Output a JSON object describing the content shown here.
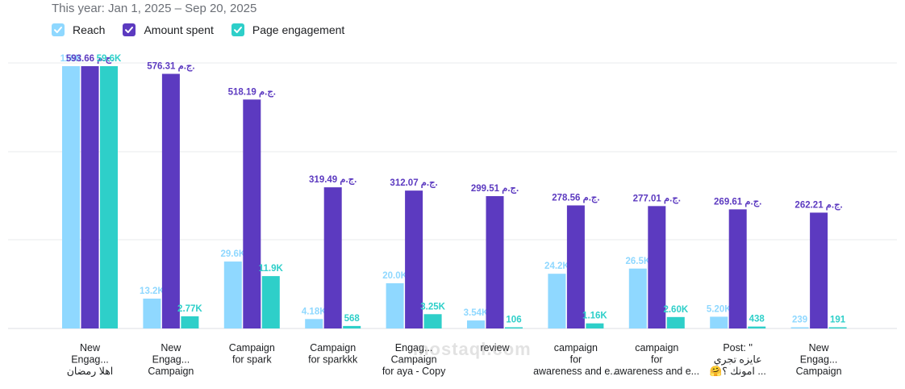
{
  "header": {
    "date_range": "This year: Jan 1, 2025 – Sep 20, 2025"
  },
  "legend": [
    {
      "label": "Reach",
      "color": "#8fd8ff",
      "icon": "check-icon"
    },
    {
      "label": "Amount spent",
      "color": "#5c3ac0",
      "icon": "check-icon"
    },
    {
      "label": "Page engagement",
      "color": "#2ecfc9",
      "icon": "check-icon"
    }
  ],
  "watermark": "mostaql.com",
  "chart_data": {
    "type": "bar",
    "grid": true,
    "categories": [
      [
        "New",
        "Engag...",
        "اهلا رمضان"
      ],
      [
        "New",
        "Engag...",
        "Campaign"
      ],
      [
        "Campaign",
        "for spark"
      ],
      [
        "Campaign",
        "for sparkkk"
      ],
      [
        "Engag...",
        "Campaign",
        "for aya - Copy"
      ],
      [
        "review"
      ],
      [
        "campaign",
        "for",
        "awareness and e..."
      ],
      [
        "campaign",
        "for",
        "awareness and e..."
      ],
      [
        "Post: ''",
        "عايزه تجري",
        "🤗امونك ؟ ..."
      ],
      [
        "New",
        "Engag...",
        "Campaign"
      ]
    ],
    "series": [
      {
        "name": "Reach",
        "color": "#8fd8ff",
        "label_color": "#8fd8ff",
        "values": [
          116000,
          13200,
          29600,
          4180,
          20000,
          3540,
          24200,
          26500,
          5200,
          239
        ],
        "labels": [
          "116K",
          "13.2K",
          "29.6K",
          "4.18K",
          "20.0K",
          "3.54K",
          "24.2K",
          "26.5K",
          "5.20K",
          "239"
        ]
      },
      {
        "name": "Amount spent",
        "color": "#5c3ac0",
        "label_color": "#5c3ac0",
        "values": [
          593.66,
          576.31,
          518.19,
          319.49,
          312.07,
          299.51,
          278.56,
          277.01,
          269.61,
          262.21
        ],
        "labels": [
          "593.66 ج.م.",
          "576.31 ج.م.",
          "518.19 ج.م.",
          "319.49 ج.م.",
          "312.07 ج.م.",
          "299.51 ج.م.",
          "278.56 ج.م.",
          "277.01 ج.م.",
          "269.61 ج.م.",
          "262.21 ج.م."
        ]
      },
      {
        "name": "Page engagement",
        "color": "#2ecfc9",
        "label_color": "#2ecfc9",
        "values": [
          59600,
          2770,
          11900,
          568,
          3250,
          106,
          1160,
          2600,
          438,
          191
        ],
        "labels": [
          "59.6K",
          "2.77K",
          "11.9K",
          "568",
          "3.25K",
          "106",
          "1.16K",
          "2.60K",
          "438",
          "191"
        ]
      }
    ]
  }
}
